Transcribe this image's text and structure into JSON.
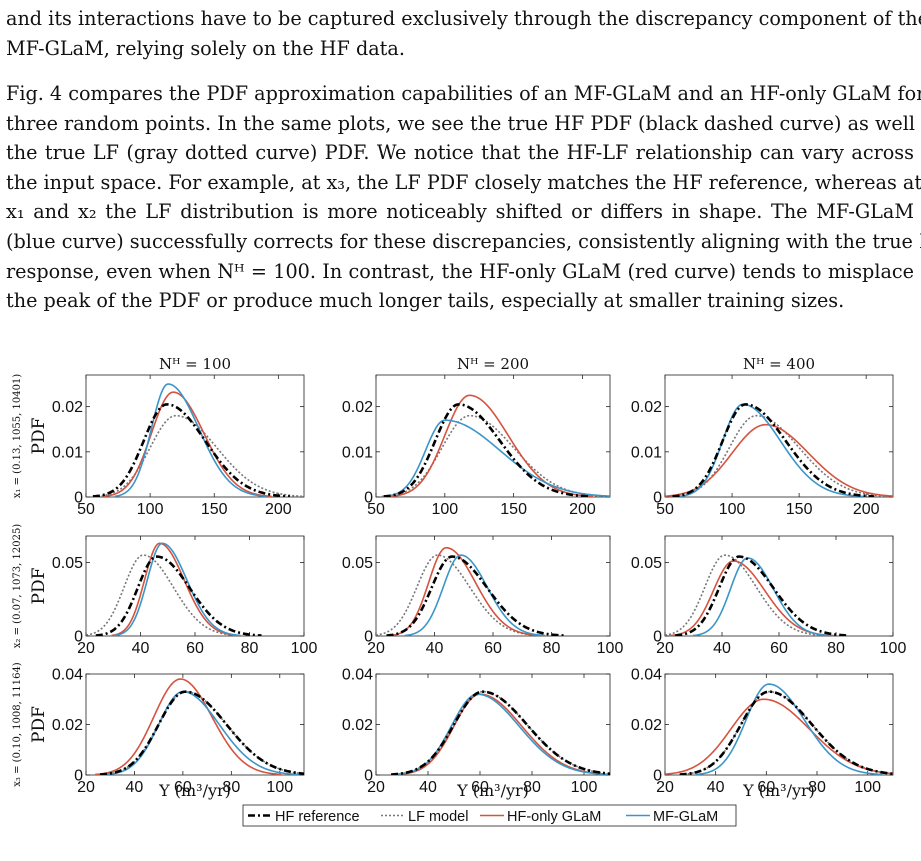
{
  "text": {
    "para1": [
      "and its interactions have to be captured exclusively through the discrepancy component of the",
      "MF-GLaM, relying solely on the HF data."
    ],
    "para2": [
      "Fig. 4 compares the PDF approximation capabilities of an MF-GLaM and an HF-only GLaM for",
      "three random points. In the same plots, we see the true HF PDF (black dashed curve) as well as",
      "the true LF (gray dotted curve) PDF. We notice that the HF-LF relationship can vary across",
      "the input space. For example, at x₃, the LF PDF closely matches the HF reference, whereas at",
      "x₁ and x₂ the LF distribution is more noticeably shifted or differs in shape. The MF-GLaM",
      "(blue curve) successfully corrects for these discrepancies, consistently aligning with the true HF",
      "response, even when Nᴴ = 100. In contrast, the HF-only GLaM (red curve) tends to misplace",
      "the peak of the PDF or produce much longer tails, especially at smaller training sizes."
    ]
  },
  "figure": {
    "col_titles": [
      "Nᴴ = 100",
      "Nᴴ = 200",
      "Nᴴ = 400"
    ],
    "row_labels": [
      "x₁ = (0.13, 1055, 10401)",
      "x₂ = (0.07, 1073, 12025)",
      "x₃ = (0.10, 1008, 11164)"
    ],
    "ylabel": "PDF",
    "xlabel": "Y (m³/yr)",
    "legend": [
      "HF reference",
      "LF model",
      "HF-only GLaM",
      "MF-GLaM"
    ],
    "colors": {
      "hf": "#000000",
      "lf": "#777777",
      "hfonly": "#d5533f",
      "mf": "#3a96c9"
    }
  },
  "chart_data": [
    {
      "type": "line",
      "panel": "x1 / N=100",
      "xlim": [
        50,
        220
      ],
      "ylim": [
        0,
        0.027
      ],
      "xticks": [
        50,
        100,
        150,
        200
      ],
      "yticks": [
        0,
        0.01,
        0.02
      ],
      "series": [
        {
          "name": "HF reference",
          "mode": 113,
          "peak": 0.0205,
          "left": 18,
          "right": 30
        },
        {
          "name": "LF model",
          "mode": 120,
          "peak": 0.018,
          "left": 20,
          "right": 32
        },
        {
          "name": "HF-only GLaM",
          "mode": 118,
          "peak": 0.0232,
          "left": 17,
          "right": 24
        },
        {
          "name": "MF-GLaM",
          "mode": 114,
          "peak": 0.025,
          "left": 13,
          "right": 24
        }
      ]
    },
    {
      "type": "line",
      "panel": "x1 / N=200",
      "xlim": [
        50,
        220
      ],
      "ylim": [
        0,
        0.027
      ],
      "xticks": [
        50,
        100,
        150,
        200
      ],
      "yticks": [
        0,
        0.01,
        0.02
      ],
      "series": [
        {
          "name": "HF reference",
          "mode": 110,
          "peak": 0.0205,
          "left": 17,
          "right": 30
        },
        {
          "name": "LF model",
          "mode": 118,
          "peak": 0.018,
          "left": 20,
          "right": 32
        },
        {
          "name": "HF-only GLaM",
          "mode": 118,
          "peak": 0.0225,
          "left": 18,
          "right": 28
        },
        {
          "name": "MF-GLaM",
          "mode": 100,
          "peak": 0.017,
          "left": 14,
          "right": 40
        }
      ]
    },
    {
      "type": "line",
      "panel": "x1 / N=400",
      "xlim": [
        50,
        220
      ],
      "ylim": [
        0,
        0.027
      ],
      "xticks": [
        50,
        100,
        150,
        200
      ],
      "yticks": [
        0,
        0.01,
        0.02
      ],
      "series": [
        {
          "name": "HF reference",
          "mode": 110,
          "peak": 0.0205,
          "left": 17,
          "right": 30
        },
        {
          "name": "LF model",
          "mode": 118,
          "peak": 0.018,
          "left": 20,
          "right": 32
        },
        {
          "name": "HF-only GLaM",
          "mode": 125,
          "peak": 0.016,
          "left": 25,
          "right": 32
        },
        {
          "name": "MF-GLaM",
          "mode": 108,
          "peak": 0.0205,
          "left": 15,
          "right": 28
        }
      ]
    },
    {
      "type": "line",
      "panel": "x2 / N=100",
      "xlim": [
        20,
        100
      ],
      "ylim": [
        0,
        0.068
      ],
      "xticks": [
        20,
        40,
        60,
        80,
        100
      ],
      "yticks": [
        0,
        0.05
      ],
      "series": [
        {
          "name": "HF reference",
          "mode": 46,
          "peak": 0.054,
          "left": 7,
          "right": 12
        },
        {
          "name": "LF model",
          "mode": 41,
          "peak": 0.055,
          "left": 7,
          "right": 11
        },
        {
          "name": "HF-only GLaM",
          "mode": 47,
          "peak": 0.063,
          "left": 5.5,
          "right": 9
        },
        {
          "name": "MF-GLaM",
          "mode": 48,
          "peak": 0.063,
          "left": 5.5,
          "right": 9
        }
      ]
    },
    {
      "type": "line",
      "panel": "x2 / N=200",
      "xlim": [
        20,
        100
      ],
      "ylim": [
        0,
        0.068
      ],
      "xticks": [
        20,
        40,
        60,
        80,
        100
      ],
      "yticks": [
        0,
        0.05
      ],
      "series": [
        {
          "name": "HF reference",
          "mode": 46,
          "peak": 0.054,
          "left": 7,
          "right": 12
        },
        {
          "name": "LF model",
          "mode": 41,
          "peak": 0.055,
          "left": 7,
          "right": 11
        },
        {
          "name": "HF-only GLaM",
          "mode": 44,
          "peak": 0.06,
          "left": 6,
          "right": 10
        },
        {
          "name": "MF-GLaM",
          "mode": 49,
          "peak": 0.055,
          "left": 6,
          "right": 9
        }
      ]
    },
    {
      "type": "line",
      "panel": "x2 / N=400",
      "xlim": [
        20,
        100
      ],
      "ylim": [
        0,
        0.068
      ],
      "xticks": [
        20,
        40,
        60,
        80,
        100
      ],
      "yticks": [
        0,
        0.05
      ],
      "series": [
        {
          "name": "HF reference",
          "mode": 46,
          "peak": 0.054,
          "left": 7,
          "right": 12
        },
        {
          "name": "LF model",
          "mode": 41,
          "peak": 0.055,
          "left": 7,
          "right": 11
        },
        {
          "name": "HF-only GLaM",
          "mode": 44,
          "peak": 0.051,
          "left": 7,
          "right": 11
        },
        {
          "name": "MF-GLaM",
          "mode": 49,
          "peak": 0.053,
          "left": 6,
          "right": 9
        }
      ]
    },
    {
      "type": "line",
      "panel": "x3 / N=100",
      "xlim": [
        20,
        110
      ],
      "ylim": [
        0,
        0.04
      ],
      "xticks": [
        20,
        40,
        60,
        80,
        100
      ],
      "yticks": [
        0,
        0.02,
        0.04
      ],
      "series": [
        {
          "name": "HF reference",
          "mode": 61,
          "peak": 0.033,
          "left": 11,
          "right": 17
        },
        {
          "name": "LF model",
          "mode": 61,
          "peak": 0.033,
          "left": 11,
          "right": 17
        },
        {
          "name": "HF-only GLaM",
          "mode": 59,
          "peak": 0.038,
          "left": 11,
          "right": 13
        },
        {
          "name": "MF-GLaM",
          "mode": 60,
          "peak": 0.033,
          "left": 10,
          "right": 15
        }
      ]
    },
    {
      "type": "line",
      "panel": "x3 / N=200",
      "xlim": [
        20,
        110
      ],
      "ylim": [
        0,
        0.04
      ],
      "xticks": [
        20,
        40,
        60,
        80,
        100
      ],
      "yticks": [
        0,
        0.02,
        0.04
      ],
      "series": [
        {
          "name": "HF reference",
          "mode": 61,
          "peak": 0.033,
          "left": 11,
          "right": 17
        },
        {
          "name": "LF model",
          "mode": 61,
          "peak": 0.033,
          "left": 11,
          "right": 17
        },
        {
          "name": "HF-only GLaM",
          "mode": 60,
          "peak": 0.032,
          "left": 10,
          "right": 16
        },
        {
          "name": "MF-GLaM",
          "mode": 59,
          "peak": 0.032,
          "left": 10,
          "right": 16
        }
      ]
    },
    {
      "type": "line",
      "panel": "x3 / N=400",
      "xlim": [
        20,
        110
      ],
      "ylim": [
        0,
        0.04
      ],
      "xticks": [
        20,
        40,
        60,
        80,
        100
      ],
      "yticks": [
        0,
        0.02,
        0.04
      ],
      "series": [
        {
          "name": "HF reference",
          "mode": 61,
          "peak": 0.033,
          "left": 11,
          "right": 17
        },
        {
          "name": "LF model",
          "mode": 61,
          "peak": 0.033,
          "left": 11,
          "right": 17
        },
        {
          "name": "HF-only GLaM",
          "mode": 59,
          "peak": 0.03,
          "left": 13,
          "right": 18
        },
        {
          "name": "MF-GLaM",
          "mode": 61,
          "peak": 0.036,
          "left": 9,
          "right": 14
        }
      ]
    }
  ]
}
